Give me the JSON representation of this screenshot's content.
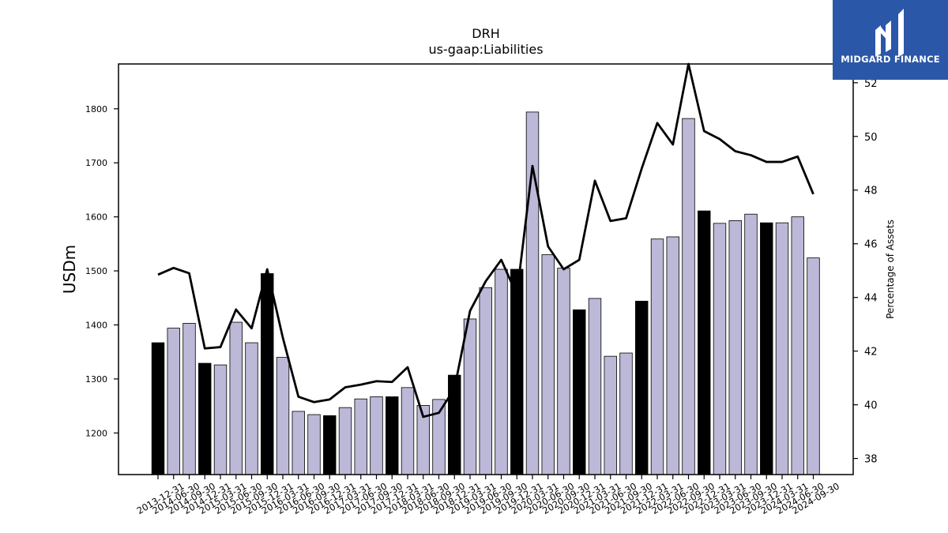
{
  "colors": {
    "bar_annual": "#000000",
    "bar_quarter": "#bcb8d8",
    "line": "#000000",
    "logo_bg": "#2b57a8",
    "logo_fg": "#ffffff"
  },
  "logo": {
    "icon": "midgard-bars-icon",
    "text": "MIDGARD FINANCE"
  },
  "chart_data": {
    "type": "bar",
    "title": "DRH",
    "subtitle": "us-gaap:Liabilities",
    "ylabel": "USDm",
    "y2label": "Percentage of Assets",
    "ylim": [
      1123,
      1883
    ],
    "y2lim": [
      37.4,
      52.7
    ],
    "yticks": [
      1200,
      1300,
      1400,
      1500,
      1600,
      1700,
      1800
    ],
    "y2ticks": [
      38,
      40,
      42,
      44,
      46,
      48,
      50,
      52
    ],
    "categories": [
      "2013-12-31",
      "2014-06-30",
      "2014-09-30",
      "2014-12-31",
      "2015-03-31",
      "2015-06-30",
      "2015-09-30",
      "2015-12-31",
      "2016-03-31",
      "2016-06-30",
      "2016-09-30",
      "2016-12-31",
      "2017-03-31",
      "2017-06-30",
      "2017-09-30",
      "2017-12-31",
      "2018-03-31",
      "2018-06-30",
      "2018-09-30",
      "2018-12-31",
      "2019-03-31",
      "2019-06-30",
      "2019-09-30",
      "2019-12-31",
      "2020-03-31",
      "2020-06-30",
      "2020-09-30",
      "2020-12-31",
      "2021-03-31",
      "2021-06-30",
      "2021-09-30",
      "2021-12-31",
      "2022-03-31",
      "2022-06-30",
      "2022-09-30",
      "2022-12-31",
      "2023-03-31",
      "2023-06-30",
      "2023-09-30",
      "2023-12-31",
      "2024-03-31",
      "2024-06-30",
      "2024-09-30"
    ],
    "series": [
      {
        "name": "Liabilities",
        "kind": "bar",
        "values": [
          1367,
          1394,
          1403,
          1329,
          1326,
          1405,
          1367,
          1495,
          1340,
          1240,
          1234,
          1232,
          1247,
          1263,
          1267,
          1267,
          1284,
          1251,
          1262,
          1307,
          1411,
          1469,
          1503,
          1503,
          1794,
          1530,
          1505,
          1428,
          1449,
          1342,
          1348,
          1444,
          1559,
          1563,
          1782,
          1611,
          1588,
          1593,
          1605,
          1589,
          1589,
          1600,
          1524
        ],
        "annual": [
          true,
          false,
          false,
          true,
          false,
          false,
          false,
          true,
          false,
          false,
          false,
          true,
          false,
          false,
          false,
          true,
          false,
          false,
          false,
          true,
          false,
          false,
          false,
          true,
          false,
          false,
          false,
          true,
          false,
          false,
          false,
          true,
          false,
          false,
          false,
          true,
          false,
          false,
          false,
          true,
          false,
          false,
          false
        ]
      },
      {
        "name": "Percentage of Assets",
        "kind": "line",
        "axis": "right",
        "values": [
          44.85,
          45.1,
          44.9,
          42.1,
          42.15,
          43.55,
          42.85,
          45.05,
          42.5,
          40.3,
          40.1,
          40.2,
          40.65,
          40.75,
          40.88,
          40.85,
          41.4,
          39.55,
          39.7,
          40.6,
          43.5,
          44.6,
          45.4,
          44.1,
          48.9,
          45.9,
          45.05,
          45.4,
          48.35,
          46.85,
          46.95,
          48.8,
          50.5,
          49.7,
          52.7,
          50.2,
          49.9,
          49.45,
          49.3,
          49.05,
          49.05,
          49.25,
          47.85
        ]
      }
    ],
    "grid": false,
    "legend": "none"
  }
}
